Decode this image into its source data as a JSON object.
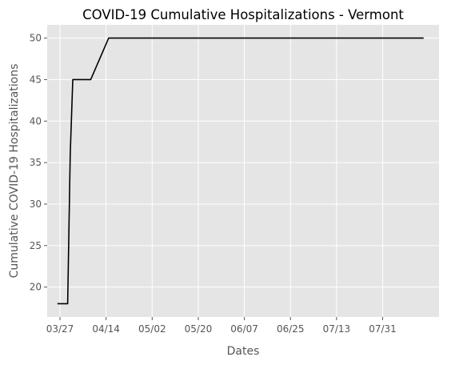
{
  "chart_data": {
    "type": "line",
    "title": "COVID-19 Cumulative Hospitalizations - Vermont",
    "xlabel": "Dates",
    "ylabel": "Cumulative COVID-19 Hospitalizations",
    "x_ticks": [
      "03/27",
      "04/14",
      "05/02",
      "05/20",
      "06/07",
      "06/25",
      "07/13",
      "07/31"
    ],
    "y_ticks": [
      20,
      25,
      30,
      35,
      40,
      45,
      50
    ],
    "xlim": [
      "03/22",
      "08/22"
    ],
    "ylim": [
      16.4,
      51.6
    ],
    "grid": true,
    "series": [
      {
        "x": [
          "03/26",
          "03/30",
          "03/31",
          "04/01",
          "04/08",
          "04/15",
          "08/16"
        ],
        "y": [
          18,
          18,
          36,
          45,
          45,
          50,
          50
        ]
      }
    ],
    "colors": {
      "background": "#E5E5E5",
      "grid": "#FFFFFF",
      "line": "#000000",
      "text": "#555555"
    }
  }
}
